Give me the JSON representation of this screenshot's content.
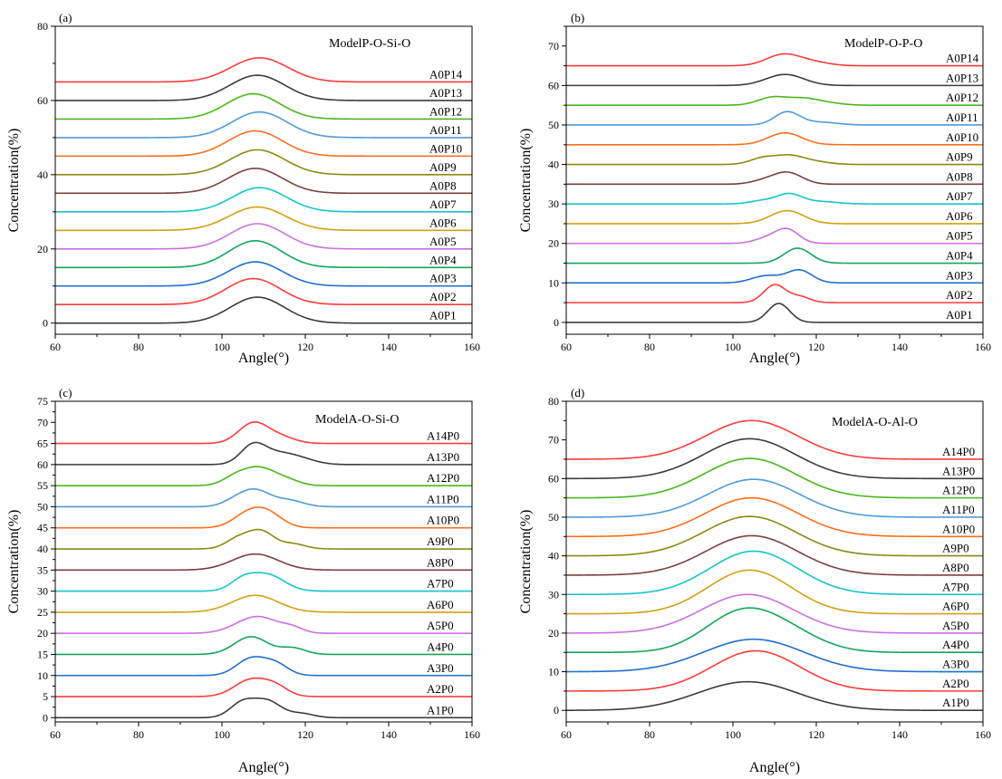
{
  "colors": [
    "#3c3c3c",
    "#ff3b3b",
    "#1f6fd0",
    "#12a65a",
    "#cc6fe0",
    "#d4a012",
    "#16c4c8",
    "#7a4040",
    "#8a8a12",
    "#ff6e1a",
    "#4f9bd8",
    "#49b81a",
    "#3c3c3c",
    "#ff3b3b"
  ],
  "chart_data": [
    {
      "type": "line",
      "panel": "(a)",
      "title": "ModelP-O-Si-O",
      "xlabel": "Angle(°)",
      "ylabel": "Concentration(%)",
      "xlim": [
        60,
        160
      ],
      "ylim": [
        -3,
        80
      ],
      "xticks": [
        60,
        80,
        100,
        120,
        140,
        160
      ],
      "yticks": [
        0,
        20,
        40,
        60,
        80
      ],
      "offset_step": 5,
      "series": [
        {
          "name": "A0P1",
          "offset": 0,
          "peaks": [
            [
              108.5,
              7.0,
              6.5
            ]
          ]
        },
        {
          "name": "A0P2",
          "offset": 5,
          "peaks": [
            [
              107.5,
              7.0,
              6.5
            ]
          ]
        },
        {
          "name": "A0P3",
          "offset": 10,
          "peaks": [
            [
              108,
              6.5,
              6.5
            ]
          ]
        },
        {
          "name": "A0P4",
          "offset": 15,
          "peaks": [
            [
              108,
              7.2,
              6.3
            ]
          ]
        },
        {
          "name": "A0P5",
          "offset": 20,
          "peaks": [
            [
              108.5,
              6.8,
              6.5
            ]
          ]
        },
        {
          "name": "A0P6",
          "offset": 25,
          "peaks": [
            [
              108.5,
              6.3,
              6.8
            ]
          ]
        },
        {
          "name": "A0P7",
          "offset": 30,
          "peaks": [
            [
              109,
              6.5,
              6.5
            ]
          ]
        },
        {
          "name": "A0P8",
          "offset": 35,
          "peaks": [
            [
              108,
              6.7,
              6.5
            ]
          ]
        },
        {
          "name": "A0P9",
          "offset": 40,
          "peaks": [
            [
              108.5,
              6.7,
              6.6
            ]
          ]
        },
        {
          "name": "A0P10",
          "offset": 45,
          "peaks": [
            [
              108,
              6.8,
              6.5
            ]
          ]
        },
        {
          "name": "A0P11",
          "offset": 50,
          "peaks": [
            [
              109,
              6.9,
              6.6
            ]
          ]
        },
        {
          "name": "A0P12",
          "offset": 55,
          "peaks": [
            [
              107.5,
              6.8,
              6.4
            ]
          ]
        },
        {
          "name": "A0P13",
          "offset": 60,
          "peaks": [
            [
              108.5,
              6.8,
              6.6
            ]
          ]
        },
        {
          "name": "A0P14",
          "offset": 65,
          "peaks": [
            [
              109,
              6.5,
              6.8
            ]
          ]
        }
      ]
    },
    {
      "type": "line",
      "panel": "(b)",
      "title": "ModelP-O-P-O",
      "xlabel": "Angle(°)",
      "ylabel": "Concentration(%)",
      "xlim": [
        60,
        160
      ],
      "ylim": [
        -3,
        75
      ],
      "xticks": [
        60,
        80,
        100,
        120,
        140,
        160
      ],
      "yticks": [
        0,
        10,
        20,
        30,
        40,
        50,
        60,
        70
      ],
      "offset_step": 5,
      "series": [
        {
          "name": "A0P1",
          "offset": 0,
          "peaks": [
            [
              111,
              4.8,
              2.6
            ]
          ]
        },
        {
          "name": "A0P2",
          "offset": 5,
          "peaks": [
            [
              110,
              4.5,
              2.6
            ],
            [
              116,
              1.5,
              2.5
            ]
          ]
        },
        {
          "name": "A0P3",
          "offset": 10,
          "peaks": [
            [
              108,
              1.8,
              3.5
            ],
            [
              116,
              3.2,
              3.0
            ]
          ]
        },
        {
          "name": "A0P4",
          "offset": 15,
          "peaks": [
            [
              115.5,
              3.8,
              3.2
            ]
          ]
        },
        {
          "name": "A0P5",
          "offset": 20,
          "peaks": [
            [
              113,
              3.5,
              2.8
            ],
            [
              108,
              1.2,
              3.0
            ]
          ]
        },
        {
          "name": "A0P6",
          "offset": 25,
          "peaks": [
            [
              113,
              3.3,
              4.0
            ]
          ]
        },
        {
          "name": "A0P7",
          "offset": 30,
          "peaks": [
            [
              113.5,
              2.5,
              3.0
            ],
            [
              107,
              0.8,
              3.0
            ],
            [
              121,
              0.6,
              4.0
            ]
          ]
        },
        {
          "name": "A0P8",
          "offset": 35,
          "peaks": [
            [
              113,
              3.0,
              3.5
            ],
            [
              107,
              0.7,
              3.0
            ]
          ]
        },
        {
          "name": "A0P9",
          "offset": 40,
          "peaks": [
            [
              113.5,
              2.2,
              3.5
            ],
            [
              107,
              1.5,
              3.0
            ],
            [
              120,
              0.6,
              3.5
            ]
          ]
        },
        {
          "name": "A0P10",
          "offset": 45,
          "peaks": [
            [
              112.5,
              3.0,
              4.0
            ]
          ]
        },
        {
          "name": "A0P11",
          "offset": 50,
          "peaks": [
            [
              113,
              3.3,
              3.0
            ],
            [
              121,
              0.7,
              4.0
            ]
          ]
        },
        {
          "name": "A0P12",
          "offset": 55,
          "peaks": [
            [
              109.5,
              2.0,
              3.5
            ],
            [
              117,
              1.6,
              3.5
            ],
            [
              123,
              0.5,
              3.5
            ]
          ]
        },
        {
          "name": "A0P13",
          "offset": 60,
          "peaks": [
            [
              112.5,
              2.8,
              4.5
            ]
          ]
        },
        {
          "name": "A0P14",
          "offset": 65,
          "peaks": [
            [
              112,
              2.8,
              4.0
            ],
            [
              119,
              0.9,
              4.0
            ]
          ]
        }
      ]
    },
    {
      "type": "line",
      "panel": "(c)",
      "title": "ModelA-O-Si-O",
      "xlabel": "Angle(°)",
      "ylabel": "Concentration(%)",
      "xlim": [
        60,
        160
      ],
      "ylim": [
        -1,
        75
      ],
      "xticks": [
        60,
        80,
        100,
        120,
        140,
        160
      ],
      "yticks": [
        0,
        5,
        10,
        15,
        20,
        25,
        30,
        35,
        40,
        45,
        50,
        55,
        60,
        65,
        70,
        75
      ],
      "offset_step": 5,
      "series": [
        {
          "name": "A1P0",
          "offset": 0,
          "peaks": [
            [
              105,
              3.6,
              3.0
            ],
            [
              111,
              3.8,
              3.2
            ],
            [
              119,
              1.0,
              3.0
            ]
          ]
        },
        {
          "name": "A2P0",
          "offset": 5,
          "peaks": [
            [
              107,
              4.0,
              4.0
            ],
            [
              113,
              2.0,
              3.0
            ]
          ]
        },
        {
          "name": "A3P0",
          "offset": 10,
          "peaks": [
            [
              107,
              4.0,
              3.5
            ],
            [
              113,
              2.5,
              3.0
            ]
          ]
        },
        {
          "name": "A4P0",
          "offset": 15,
          "peaks": [
            [
              107,
              4.2,
              4.0
            ],
            [
              117,
              1.5,
              3.0
            ]
          ]
        },
        {
          "name": "A5P0",
          "offset": 20,
          "peaks": [
            [
              108.5,
              4.0,
              5.0
            ],
            [
              117,
              1.0,
              2.5
            ]
          ]
        },
        {
          "name": "A6P0",
          "offset": 25,
          "peaks": [
            [
              108,
              4.0,
              5.5
            ]
          ]
        },
        {
          "name": "A7P0",
          "offset": 30,
          "peaks": [
            [
              105,
              2.5,
              3.0
            ],
            [
              111,
              3.8,
              4.0
            ]
          ]
        },
        {
          "name": "A8P0",
          "offset": 35,
          "peaks": [
            [
              108,
              3.8,
              5.5
            ]
          ]
        },
        {
          "name": "A9P0",
          "offset": 40,
          "peaks": [
            [
              104,
              2.5,
              3.0
            ],
            [
              109.5,
              4.0,
              3.0
            ],
            [
              117,
              1.2,
              3.0
            ]
          ]
        },
        {
          "name": "A10P0",
          "offset": 45,
          "peaks": [
            [
              106,
              3.0,
              3.5
            ],
            [
              111,
              3.3,
              3.5
            ]
          ]
        },
        {
          "name": "A11P0",
          "offset": 50,
          "peaks": [
            [
              103,
              1.2,
              3.0
            ],
            [
              108,
              3.8,
              3.5
            ],
            [
              116,
              1.5,
              3.5
            ]
          ]
        },
        {
          "name": "A12P0",
          "offset": 55,
          "peaks": [
            [
              103,
              1.6,
              3.0
            ],
            [
              109,
              4.2,
              4.0
            ],
            [
              116,
              1.0,
              3.0
            ]
          ]
        },
        {
          "name": "A13P0",
          "offset": 60,
          "peaks": [
            [
              107.5,
              4.5,
              3.0
            ],
            [
              114,
              2.5,
              4.0
            ],
            [
              120,
              0.8,
              3.5
            ]
          ]
        },
        {
          "name": "A14P0",
          "offset": 65,
          "peaks": [
            [
              107.5,
              4.8,
              3.5
            ],
            [
              114,
              1.5,
              3.5
            ]
          ]
        }
      ]
    },
    {
      "type": "line",
      "panel": "(d)",
      "title": "ModelA-O-Al-O",
      "xlabel": "Angle(°)",
      "ylabel": "Concentration(%)",
      "xlim": [
        60,
        160
      ],
      "ylim": [
        -3,
        80
      ],
      "xticks": [
        60,
        80,
        100,
        120,
        140,
        160
      ],
      "yticks": [
        0,
        10,
        20,
        30,
        40,
        50,
        60,
        70,
        80
      ],
      "offset_step": 5,
      "series": [
        {
          "name": "A1P0",
          "offset": 0,
          "peaks": [
            [
              103.5,
              7.4,
              12
            ]
          ]
        },
        {
          "name": "A2P0",
          "offset": 5,
          "peaks": [
            [
              105.5,
              10.4,
              10.5
            ]
          ]
        },
        {
          "name": "A3P0",
          "offset": 10,
          "peaks": [
            [
              105,
              8.4,
              12
            ]
          ]
        },
        {
          "name": "A4P0",
          "offset": 15,
          "peaks": [
            [
              102.5,
              10.5,
              9
            ],
            [
              115,
              3.0,
              8
            ]
          ]
        },
        {
          "name": "A5P0",
          "offset": 20,
          "peaks": [
            [
              103.5,
              10.0,
              11
            ]
          ]
        },
        {
          "name": "A6P0",
          "offset": 25,
          "peaks": [
            [
              104,
              11.3,
              10
            ]
          ]
        },
        {
          "name": "A7P0",
          "offset": 30,
          "peaks": [
            [
              105,
              11.2,
              10.5
            ]
          ]
        },
        {
          "name": "A8P0",
          "offset": 35,
          "peaks": [
            [
              104.5,
              10.2,
              11
            ]
          ]
        },
        {
          "name": "A9P0",
          "offset": 40,
          "peaks": [
            [
              104,
              10.2,
              11
            ]
          ]
        },
        {
          "name": "A10P0",
          "offset": 45,
          "peaks": [
            [
              104.5,
              10.0,
              11
            ]
          ]
        },
        {
          "name": "A11P0",
          "offset": 50,
          "peaks": [
            [
              105,
              9.8,
              11
            ]
          ]
        },
        {
          "name": "A12P0",
          "offset": 55,
          "peaks": [
            [
              104,
              10.2,
              11
            ]
          ]
        },
        {
          "name": "A13P0",
          "offset": 60,
          "peaks": [
            [
              104,
              10.3,
              11
            ]
          ]
        },
        {
          "name": "A14P0",
          "offset": 65,
          "peaks": [
            [
              104.5,
              10.0,
              11
            ]
          ]
        }
      ]
    }
  ]
}
